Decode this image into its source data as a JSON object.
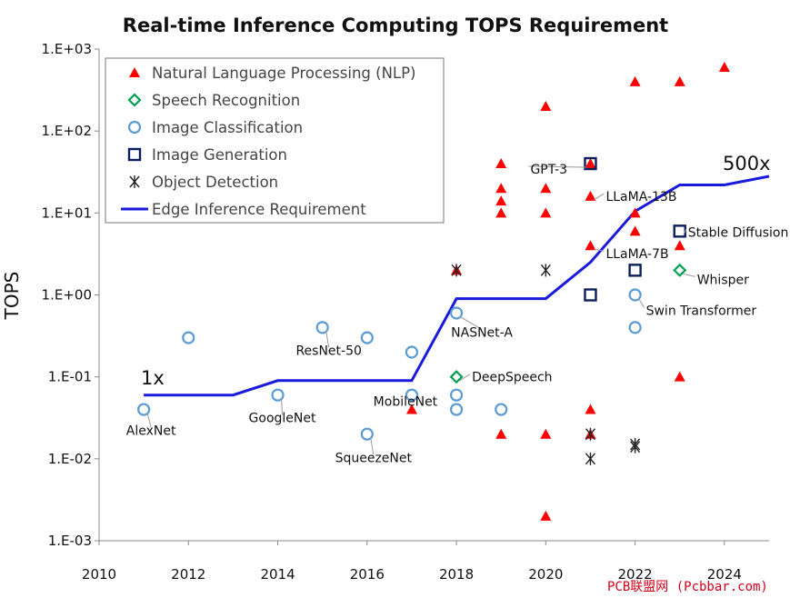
{
  "chart_data": {
    "type": "scatter",
    "title": "Real-time Inference Computing TOPS Requirement",
    "xlabel": "",
    "ylabel": "TOPS",
    "xlim": [
      2010,
      2025
    ],
    "ylim": [
      0.001,
      1000
    ],
    "yscale": "log",
    "x_ticks": [
      "2010",
      "2012",
      "2014",
      "2016",
      "2018",
      "2020",
      "2022",
      "2024"
    ],
    "y_ticks": [
      {
        "v": 1000,
        "label": "1.E+03"
      },
      {
        "v": 100,
        "label": "1.E+02"
      },
      {
        "v": 10,
        "label": "1.E+01"
      },
      {
        "v": 1,
        "label": "1.E+00"
      },
      {
        "v": 0.1,
        "label": "1.E-01"
      },
      {
        "v": 0.01,
        "label": "1.E-02"
      },
      {
        "v": 0.001,
        "label": "1.E-03"
      }
    ],
    "grid": false,
    "legend_position": "top-left",
    "series": [
      {
        "name": "Natural Language Processing (NLP)",
        "marker": "triangle",
        "color": "#ff0000",
        "points": [
          [
            2017,
            0.04
          ],
          [
            2018,
            2
          ],
          [
            2019,
            40
          ],
          [
            2019,
            20
          ],
          [
            2019,
            14
          ],
          [
            2019,
            10
          ],
          [
            2019,
            0.02
          ],
          [
            2020,
            200
          ],
          [
            2020,
            20
          ],
          [
            2020,
            10
          ],
          [
            2020,
            0.02
          ],
          [
            2020,
            0.002
          ],
          [
            2021,
            40
          ],
          [
            2021,
            16
          ],
          [
            2021,
            4
          ],
          [
            2021,
            0.04
          ],
          [
            2021,
            0.02
          ],
          [
            2022,
            400
          ],
          [
            2022,
            10
          ],
          [
            2022,
            6
          ],
          [
            2023,
            400
          ],
          [
            2023,
            4
          ],
          [
            2023,
            0.1
          ],
          [
            2024,
            600
          ]
        ]
      },
      {
        "name": "Speech Recognition",
        "marker": "diamond",
        "color": "#00a050",
        "points": [
          [
            2018,
            0.1
          ],
          [
            2023,
            2
          ]
        ]
      },
      {
        "name": "Image Classification",
        "marker": "circle",
        "color": "#5b9bd5",
        "points": [
          [
            2011,
            0.04
          ],
          [
            2012,
            0.3
          ],
          [
            2014,
            0.06
          ],
          [
            2015,
            0.4
          ],
          [
            2016,
            0.3
          ],
          [
            2016,
            0.02
          ],
          [
            2017,
            0.2
          ],
          [
            2017,
            0.06
          ],
          [
            2018,
            0.6
          ],
          [
            2018,
            0.06
          ],
          [
            2018,
            0.04
          ],
          [
            2019,
            0.04
          ],
          [
            2022,
            1
          ],
          [
            2022,
            0.4
          ]
        ]
      },
      {
        "name": "Image Generation",
        "marker": "square",
        "color": "#0b1f5c",
        "points": [
          [
            2021,
            40
          ],
          [
            2021,
            1
          ],
          [
            2022,
            2
          ],
          [
            2023,
            6
          ]
        ]
      },
      {
        "name": "Object Detection",
        "marker": "asterisk",
        "color": "#222222",
        "points": [
          [
            2018,
            2
          ],
          [
            2020,
            2
          ],
          [
            2021,
            0.02
          ],
          [
            2021,
            0.01
          ],
          [
            2022,
            0.015
          ],
          [
            2022,
            0.014
          ]
        ]
      },
      {
        "name": "Edge Inference Requirement",
        "marker": "line",
        "color": "#1a1adc",
        "points": [
          [
            2011,
            0.06
          ],
          [
            2013,
            0.06
          ],
          [
            2014,
            0.09
          ],
          [
            2017,
            0.09
          ],
          [
            2018,
            0.9
          ],
          [
            2020,
            0.9
          ],
          [
            2021,
            2.5
          ],
          [
            2022,
            10.5
          ],
          [
            2023,
            22
          ],
          [
            2024,
            22
          ],
          [
            2025,
            28
          ]
        ]
      }
    ],
    "point_labels": [
      {
        "text": "AlexNet",
        "x": 2011,
        "y": 0.04
      },
      {
        "text": "GoogleNet",
        "x": 2014,
        "y": 0.06
      },
      {
        "text": "ResNet-50",
        "x": 2015,
        "y": 0.4
      },
      {
        "text": "SqueezeNet",
        "x": 2016,
        "y": 0.02
      },
      {
        "text": "MobileNet",
        "x": 2017,
        "y": 0.06
      },
      {
        "text": "NASNet-A",
        "x": 2018,
        "y": 0.6
      },
      {
        "text": "DeepSpeech",
        "x": 2018,
        "y": 0.1
      },
      {
        "text": "GPT-3",
        "x": 2021,
        "y": 40
      },
      {
        "text": "LLaMA-13B",
        "x": 2021,
        "y": 16
      },
      {
        "text": "LLaMA-7B",
        "x": 2021,
        "y": 4
      },
      {
        "text": "Stable Diffusion",
        "x": 2023,
        "y": 6
      },
      {
        "text": "Whisper",
        "x": 2023,
        "y": 2
      },
      {
        "text": "Swin Transformer",
        "x": 2022,
        "y": 1
      }
    ],
    "annotations": [
      "1x",
      "500x"
    ]
  },
  "watermark": "PCB联盟网 (Pcbbar.com)"
}
